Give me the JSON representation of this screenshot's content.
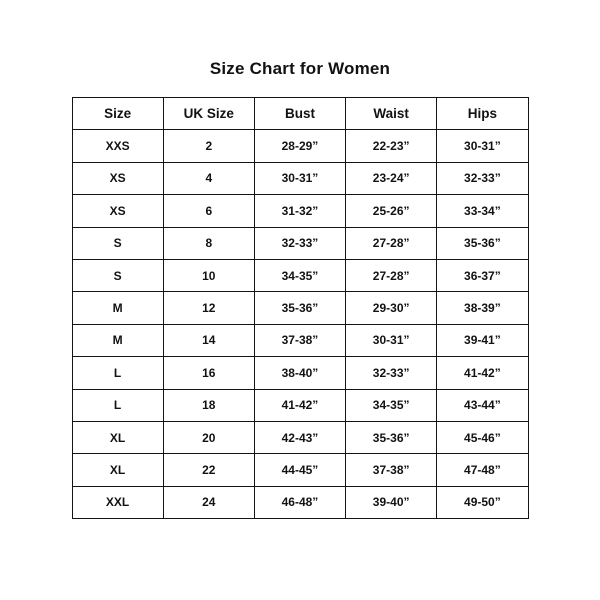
{
  "title": "Size Chart for Women",
  "colors": {
    "background": "#ffffff",
    "text": "#121212",
    "border": "#141414"
  },
  "chart_data": {
    "type": "table",
    "title": "Size Chart for Women",
    "columns": [
      "Size",
      "UK Size",
      "Bust",
      "Waist",
      "Hips"
    ],
    "rows": [
      [
        "XXS",
        "2",
        "28-29”",
        "22-23”",
        "30-31”"
      ],
      [
        "XS",
        "4",
        "30-31”",
        "23-24”",
        "32-33”"
      ],
      [
        "XS",
        "6",
        "31-32”",
        "25-26”",
        "33-34”"
      ],
      [
        "S",
        "8",
        "32-33”",
        "27-28”",
        "35-36”"
      ],
      [
        "S",
        "10",
        "34-35”",
        "27-28”",
        "36-37”"
      ],
      [
        "M",
        "12",
        "35-36”",
        "29-30”",
        "38-39”"
      ],
      [
        "M",
        "14",
        "37-38”",
        "30-31”",
        "39-41”"
      ],
      [
        "L",
        "16",
        "38-40”",
        "32-33”",
        "41-42”"
      ],
      [
        "L",
        "18",
        "41-42”",
        "34-35”",
        "43-44”"
      ],
      [
        "XL",
        "20",
        "42-43”",
        "35-36”",
        "45-46”"
      ],
      [
        "XL",
        "22",
        "44-45”",
        "37-38”",
        "47-48”"
      ],
      [
        "XXL",
        "24",
        "46-48”",
        "39-40”",
        "49-50”"
      ]
    ],
    "layout": {
      "grid": true,
      "column_count": 5,
      "row_count": 12,
      "header_row": true,
      "text_align": "center"
    }
  }
}
